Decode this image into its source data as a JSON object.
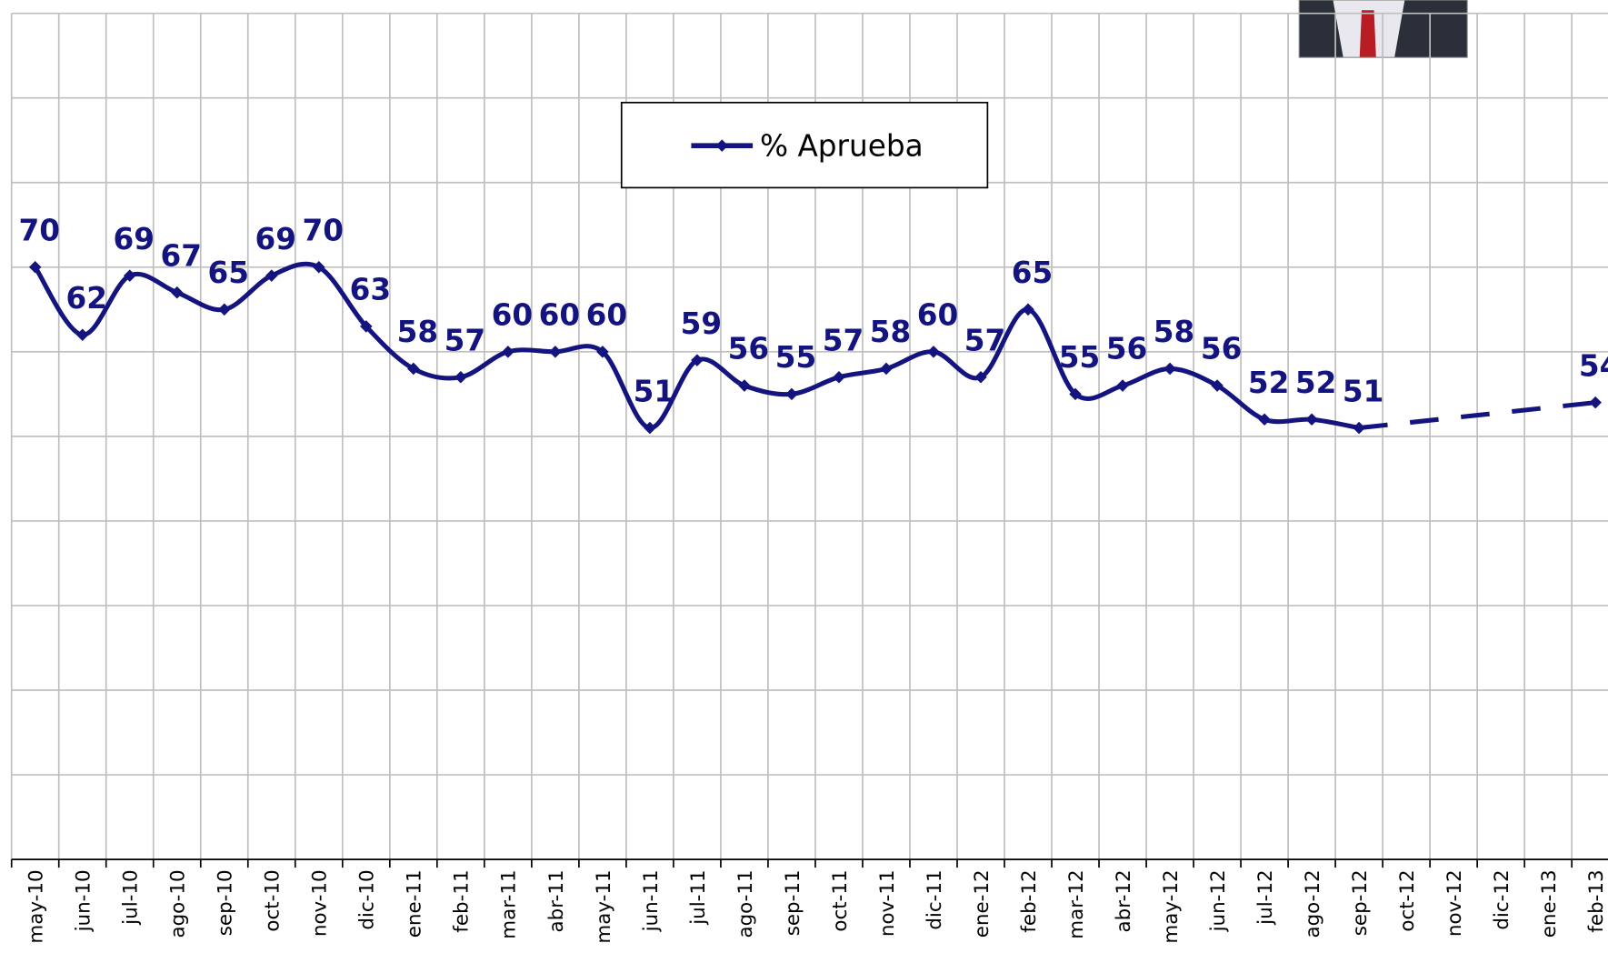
{
  "chart_data": {
    "type": "line",
    "categories": [
      "may-10",
      "jun-10",
      "jul-10",
      "ago-10",
      "sep-10",
      "oct-10",
      "nov-10",
      "dic-10",
      "ene-11",
      "feb-11",
      "mar-11",
      "abr-11",
      "may-11",
      "jun-11",
      "jul-11",
      "ago-11",
      "sep-11",
      "oct-11",
      "nov-11",
      "dic-11",
      "ene-12",
      "feb-12",
      "mar-12",
      "abr-12",
      "may-12",
      "jun-12",
      "jul-12",
      "ago-12",
      "sep-12",
      "oct-12",
      "nov-12",
      "dic-12",
      "ene-13",
      "feb-13"
    ],
    "series": [
      {
        "name": "% Aprueba",
        "color": "#141480",
        "values": [
          70,
          62,
          69,
          67,
          65,
          69,
          70,
          63,
          58,
          57,
          60,
          60,
          60,
          51,
          59,
          56,
          55,
          57,
          58,
          60,
          57,
          65,
          55,
          56,
          58,
          56,
          52,
          52,
          51,
          null,
          null,
          null,
          null,
          54
        ]
      }
    ],
    "ylim": [
      0,
      100
    ],
    "yticks": [
      0,
      10,
      20,
      30,
      40,
      50,
      60,
      70,
      80,
      90,
      100
    ],
    "grid": true,
    "legend": "top"
  }
}
